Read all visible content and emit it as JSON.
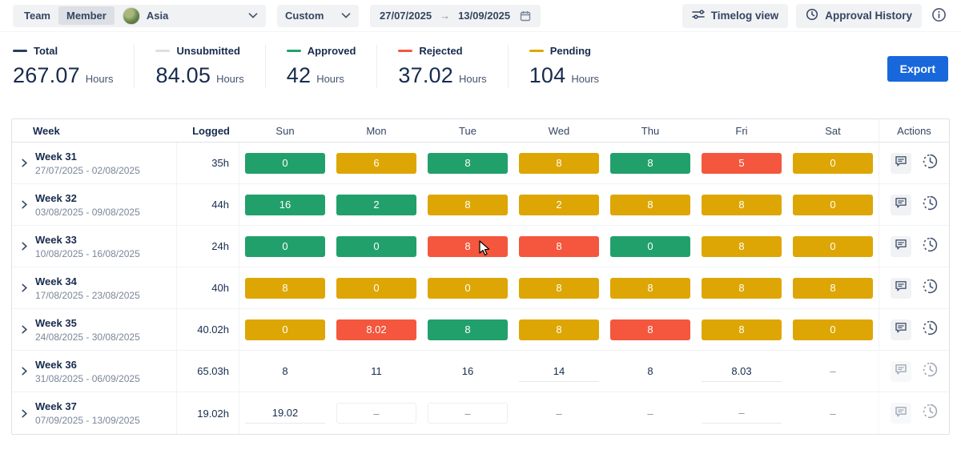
{
  "toolbar": {
    "team_label": "Team",
    "member_label": "Member",
    "selected_mode": "Member",
    "person": "Asia",
    "range_preset": "Custom",
    "date_from": "27/07/2025",
    "date_to": "13/09/2025",
    "timelog_view": "Timelog view",
    "approval_history": "Approval History"
  },
  "summary": {
    "stats": [
      {
        "label": "Total",
        "value": "267.07",
        "unit": "Hours",
        "color": "#2C3E5D"
      },
      {
        "label": "Unsubmitted",
        "value": "84.05",
        "unit": "Hours",
        "color": "#DCDFE4"
      },
      {
        "label": "Approved",
        "value": "42",
        "unit": "Hours",
        "color": "#22A06B"
      },
      {
        "label": "Rejected",
        "value": "37.02",
        "unit": "Hours",
        "color": "#F4573D"
      },
      {
        "label": "Pending",
        "value": "104",
        "unit": "Hours",
        "color": "#DDA604"
      }
    ],
    "export_label": "Export"
  },
  "table": {
    "headers": [
      "Week",
      "Logged",
      "Sun",
      "Mon",
      "Tue",
      "Wed",
      "Thu",
      "Fri",
      "Sat",
      "Actions"
    ],
    "rows": [
      {
        "week": "Week 31",
        "dates": "27/07/2025 - 02/08/2025",
        "logged": "35h",
        "actions_disabled": false,
        "cells": [
          {
            "v": "0",
            "s": "green"
          },
          {
            "v": "6",
            "s": "yellow"
          },
          {
            "v": "8",
            "s": "green"
          },
          {
            "v": "8",
            "s": "yellow"
          },
          {
            "v": "8",
            "s": "green"
          },
          {
            "v": "5",
            "s": "red"
          },
          {
            "v": "0",
            "s": "yellow"
          }
        ]
      },
      {
        "week": "Week 32",
        "dates": "03/08/2025 - 09/08/2025",
        "logged": "44h",
        "actions_disabled": false,
        "cells": [
          {
            "v": "16",
            "s": "green"
          },
          {
            "v": "2",
            "s": "green"
          },
          {
            "v": "8",
            "s": "yellow"
          },
          {
            "v": "2",
            "s": "yellow"
          },
          {
            "v": "8",
            "s": "yellow"
          },
          {
            "v": "8",
            "s": "yellow"
          },
          {
            "v": "0",
            "s": "yellow"
          }
        ]
      },
      {
        "week": "Week 33",
        "dates": "10/08/2025 - 16/08/2025",
        "logged": "24h",
        "actions_disabled": false,
        "cells": [
          {
            "v": "0",
            "s": "green"
          },
          {
            "v": "0",
            "s": "green"
          },
          {
            "v": "8",
            "s": "red"
          },
          {
            "v": "8",
            "s": "red"
          },
          {
            "v": "0",
            "s": "green"
          },
          {
            "v": "8",
            "s": "yellow"
          },
          {
            "v": "0",
            "s": "yellow"
          }
        ]
      },
      {
        "week": "Week 34",
        "dates": "17/08/2025 - 23/08/2025",
        "logged": "40h",
        "actions_disabled": false,
        "cells": [
          {
            "v": "8",
            "s": "yellow"
          },
          {
            "v": "0",
            "s": "yellow"
          },
          {
            "v": "0",
            "s": "yellow"
          },
          {
            "v": "8",
            "s": "yellow"
          },
          {
            "v": "8",
            "s": "yellow"
          },
          {
            "v": "8",
            "s": "yellow"
          },
          {
            "v": "8",
            "s": "yellow"
          }
        ]
      },
      {
        "week": "Week 35",
        "dates": "24/08/2025 - 30/08/2025",
        "logged": "40.02h",
        "actions_disabled": false,
        "cells": [
          {
            "v": "0",
            "s": "yellow"
          },
          {
            "v": "8.02",
            "s": "red"
          },
          {
            "v": "8",
            "s": "green"
          },
          {
            "v": "8",
            "s": "yellow"
          },
          {
            "v": "8",
            "s": "red"
          },
          {
            "v": "8",
            "s": "yellow"
          },
          {
            "v": "0",
            "s": "yellow"
          }
        ]
      },
      {
        "week": "Week 36",
        "dates": "31/08/2025 - 06/09/2025",
        "logged": "65.03h",
        "actions_disabled": true,
        "cells": [
          {
            "v": "8",
            "s": "plain"
          },
          {
            "v": "11",
            "s": "plain"
          },
          {
            "v": "16",
            "s": "plain"
          },
          {
            "v": "14",
            "s": "underline"
          },
          {
            "v": "8",
            "s": "plain"
          },
          {
            "v": "8.03",
            "s": "underline"
          },
          {
            "v": "–",
            "s": "plain"
          }
        ]
      },
      {
        "week": "Week 37",
        "dates": "07/09/2025 - 13/09/2025",
        "logged": "19.02h",
        "actions_disabled": true,
        "cells": [
          {
            "v": "19.02",
            "s": "underline"
          },
          {
            "v": "–",
            "s": "box"
          },
          {
            "v": "–",
            "s": "box"
          },
          {
            "v": "–",
            "s": "plain"
          },
          {
            "v": "–",
            "s": "plain"
          },
          {
            "v": "–",
            "s": "underline"
          },
          {
            "v": "–",
            "s": "plain"
          }
        ]
      }
    ]
  },
  "colors": {
    "approved_green": "#22A06B",
    "pending_yellow": "#DDA604",
    "rejected_red": "#F4573D",
    "export_blue": "#1868DB",
    "text_navy": "#172B4D"
  },
  "icons": [
    "chevron-down-icon",
    "calendar-icon",
    "arrow-right-icon",
    "sliders-icon",
    "history-clock-icon",
    "info-icon",
    "chevron-right-icon",
    "comment-icon",
    "clock-icon",
    "mouse-cursor"
  ]
}
